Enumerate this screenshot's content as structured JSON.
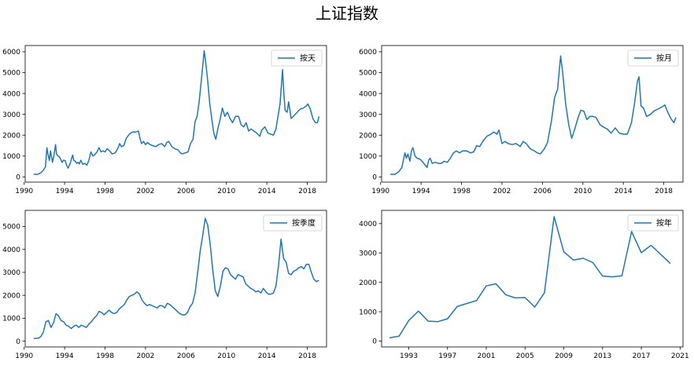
{
  "figure_title": "上证指数",
  "series_color": "#1f77b4",
  "chart_data": [
    {
      "type": "line",
      "legend": "按天",
      "legend_position": "top-right",
      "grid": false,
      "xlim": [
        1990.1,
        2019.9
      ],
      "ylim": [
        -250,
        6300
      ],
      "xticks": [
        1990,
        1994,
        1998,
        2002,
        2006,
        2010,
        2014,
        2018
      ],
      "yticks": [
        0,
        1000,
        2000,
        3000,
        4000,
        5000,
        6000
      ],
      "x": [
        1990.95,
        1991.3,
        1991.6,
        1991.9,
        1992.1,
        1992.25,
        1992.35,
        1992.5,
        1992.6,
        1992.8,
        1992.95,
        1993.1,
        1993.2,
        1993.35,
        1993.5,
        1993.6,
        1993.75,
        1993.9,
        1994.05,
        1994.2,
        1994.35,
        1994.55,
        1994.7,
        1994.8,
        1994.9,
        1995.05,
        1995.2,
        1995.35,
        1995.45,
        1995.6,
        1995.8,
        1996.0,
        1996.2,
        1996.4,
        1996.6,
        1996.8,
        1996.95,
        1997.2,
        1997.4,
        1997.6,
        1997.8,
        1998.0,
        1998.2,
        1998.45,
        1998.7,
        1999.0,
        1999.25,
        1999.45,
        1999.6,
        1999.85,
        2000.1,
        2000.4,
        2000.7,
        2001.0,
        2001.3,
        2001.45,
        2001.6,
        2001.8,
        2002.0,
        2002.2,
        2002.45,
        2002.7,
        2003.0,
        2003.3,
        2003.6,
        2003.9,
        2004.1,
        2004.3,
        2004.6,
        2004.9,
        2005.2,
        2005.45,
        2005.65,
        2005.9,
        2006.2,
        2006.45,
        2006.7,
        2006.9,
        2007.1,
        2007.3,
        2007.55,
        2007.8,
        2007.95,
        2008.15,
        2008.35,
        2008.55,
        2008.75,
        2008.95,
        2009.15,
        2009.35,
        2009.6,
        2009.85,
        2010.1,
        2010.35,
        2010.6,
        2010.9,
        2011.2,
        2011.45,
        2011.7,
        2011.95,
        2012.2,
        2012.45,
        2012.7,
        2013.0,
        2013.3,
        2013.5,
        2013.8,
        2014.1,
        2014.4,
        2014.65,
        2014.9,
        2015.1,
        2015.3,
        2015.45,
        2015.55,
        2015.65,
        2015.8,
        2016.0,
        2016.15,
        2016.4,
        2016.7,
        2017.0,
        2017.3,
        2017.6,
        2017.9,
        2018.05,
        2018.3,
        2018.55,
        2018.8,
        2019.0,
        2019.15
      ],
      "y": [
        130,
        120,
        180,
        320,
        480,
        1400,
        1100,
        780,
        1250,
        700,
        1050,
        1550,
        1100,
        1000,
        950,
        850,
        700,
        800,
        780,
        550,
        420,
        650,
        900,
        1050,
        800,
        750,
        650,
        700,
        620,
        800,
        600,
        650,
        560,
        800,
        1200,
        1000,
        1050,
        1200,
        1400,
        1200,
        1250,
        1200,
        1350,
        1250,
        1100,
        1150,
        1350,
        1600,
        1450,
        1500,
        1850,
        2050,
        2150,
        2150,
        2200,
        1850,
        1600,
        1700,
        1550,
        1650,
        1550,
        1500,
        1450,
        1550,
        1600,
        1450,
        1650,
        1700,
        1450,
        1350,
        1300,
        1150,
        1100,
        1150,
        1200,
        1600,
        1800,
        2650,
        2900,
        3600,
        4800,
        6050,
        5500,
        4600,
        3500,
        2800,
        2100,
        1800,
        2300,
        2700,
        3300,
        2900,
        3100,
        2800,
        2600,
        2900,
        2900,
        2500,
        2400,
        2600,
        2200,
        2300,
        2200,
        2100,
        1950,
        2250,
        2400,
        2100,
        2050,
        2000,
        2300,
        2900,
        3500,
        4500,
        5150,
        4200,
        3200,
        3100,
        3600,
        2800,
        2950,
        3100,
        3250,
        3300,
        3400,
        3500,
        3250,
        2800,
        2600,
        2600,
        2900
      ]
    },
    {
      "type": "line",
      "legend": "按月",
      "legend_position": "top-right",
      "grid": false,
      "xlim": [
        1990.1,
        2019.9
      ],
      "ylim": [
        -250,
        6300
      ],
      "xticks": [
        1990,
        1994,
        1998,
        2002,
        2006,
        2010,
        2014,
        2018
      ],
      "yticks": [
        0,
        1000,
        2000,
        3000,
        4000,
        5000,
        6000
      ],
      "x": [
        1990.95,
        1991.4,
        1991.8,
        1992.1,
        1992.4,
        1992.55,
        1992.7,
        1992.9,
        1993.05,
        1993.2,
        1993.4,
        1993.6,
        1993.9,
        1994.1,
        1994.35,
        1994.6,
        1994.75,
        1994.9,
        1995.1,
        1995.4,
        1995.7,
        1996.0,
        1996.3,
        1996.6,
        1996.9,
        1997.2,
        1997.5,
        1997.8,
        1998.1,
        1998.5,
        1998.9,
        1999.2,
        1999.5,
        1999.8,
        2000.1,
        2000.5,
        2000.9,
        2001.2,
        2001.5,
        2001.7,
        2002.0,
        2002.3,
        2002.6,
        2003.0,
        2003.4,
        2003.8,
        2004.1,
        2004.4,
        2004.8,
        2005.2,
        2005.5,
        2005.8,
        2006.2,
        2006.5,
        2006.9,
        2007.2,
        2007.5,
        2007.8,
        2008.0,
        2008.3,
        2008.6,
        2008.9,
        2009.2,
        2009.5,
        2009.8,
        2010.1,
        2010.4,
        2010.7,
        2011.0,
        2011.3,
        2011.7,
        2012.0,
        2012.4,
        2012.8,
        2013.2,
        2013.6,
        2014.0,
        2014.4,
        2014.8,
        2015.1,
        2015.4,
        2015.55,
        2015.75,
        2016.0,
        2016.3,
        2016.7,
        2017.0,
        2017.4,
        2017.8,
        2018.1,
        2018.4,
        2018.7,
        2019.0,
        2019.2
      ],
      "y": [
        130,
        120,
        250,
        450,
        1150,
        900,
        1100,
        750,
        1250,
        1400,
        1000,
        900,
        850,
        750,
        600,
        450,
        800,
        900,
        650,
        700,
        650,
        650,
        750,
        700,
        900,
        1150,
        1250,
        1150,
        1250,
        1250,
        1150,
        1200,
        1500,
        1450,
        1700,
        1950,
        2050,
        2150,
        2050,
        2250,
        1600,
        1700,
        1600,
        1550,
        1600,
        1450,
        1700,
        1600,
        1350,
        1250,
        1150,
        1100,
        1350,
        1650,
        2700,
        3800,
        4200,
        5800,
        5000,
        3500,
        2500,
        1850,
        2300,
        2800,
        3200,
        3150,
        2750,
        2900,
        2900,
        2850,
        2500,
        2400,
        2300,
        2100,
        2350,
        2100,
        2050,
        2050,
        2600,
        3500,
        4600,
        4800,
        3400,
        3300,
        2900,
        3000,
        3150,
        3250,
        3350,
        3450,
        3100,
        2800,
        2600,
        2850
      ]
    },
    {
      "type": "line",
      "legend": "按季度",
      "legend_position": "top-right",
      "grid": false,
      "xlim": [
        1990.1,
        2019.9
      ],
      "ylim": [
        -250,
        5700
      ],
      "xticks": [
        1990,
        1994,
        1998,
        2002,
        2006,
        2010,
        2014,
        2018
      ],
      "yticks": [
        0,
        1000,
        2000,
        3000,
        4000,
        5000
      ],
      "x": [
        1990.95,
        1991.4,
        1991.65,
        1991.9,
        1992.15,
        1992.4,
        1992.65,
        1992.9,
        1993.15,
        1993.4,
        1993.65,
        1993.9,
        1994.15,
        1994.4,
        1994.65,
        1994.9,
        1995.15,
        1995.4,
        1995.65,
        1995.9,
        1996.15,
        1996.4,
        1996.65,
        1996.9,
        1997.15,
        1997.4,
        1997.65,
        1997.9,
        1998.15,
        1998.4,
        1998.65,
        1998.9,
        1999.15,
        1999.4,
        1999.65,
        1999.9,
        2000.15,
        2000.4,
        2000.65,
        2000.9,
        2001.15,
        2001.4,
        2001.65,
        2001.9,
        2002.15,
        2002.4,
        2002.65,
        2002.9,
        2003.15,
        2003.4,
        2003.65,
        2003.9,
        2004.15,
        2004.4,
        2004.65,
        2004.9,
        2005.15,
        2005.4,
        2005.65,
        2005.9,
        2006.15,
        2006.4,
        2006.65,
        2006.9,
        2007.15,
        2007.4,
        2007.65,
        2007.9,
        2008.15,
        2008.4,
        2008.65,
        2008.9,
        2009.15,
        2009.4,
        2009.65,
        2009.9,
        2010.15,
        2010.4,
        2010.65,
        2010.9,
        2011.15,
        2011.4,
        2011.65,
        2011.9,
        2012.15,
        2012.4,
        2012.65,
        2012.9,
        2013.15,
        2013.4,
        2013.65,
        2013.9,
        2014.15,
        2014.4,
        2014.65,
        2014.9,
        2015.15,
        2015.4,
        2015.65,
        2015.9,
        2016.15,
        2016.4,
        2016.65,
        2016.9,
        2017.15,
        2017.4,
        2017.65,
        2017.9,
        2018.15,
        2018.4,
        2018.65,
        2018.9,
        2019.15
      ],
      "y": [
        120,
        130,
        200,
        400,
        850,
        900,
        600,
        800,
        1200,
        1100,
        900,
        850,
        700,
        650,
        550,
        650,
        700,
        600,
        700,
        650,
        600,
        750,
        850,
        1000,
        1100,
        1300,
        1250,
        1150,
        1250,
        1350,
        1250,
        1200,
        1250,
        1400,
        1500,
        1600,
        1800,
        1950,
        2000,
        2050,
        2150,
        2050,
        1800,
        1650,
        1550,
        1600,
        1550,
        1500,
        1450,
        1550,
        1550,
        1450,
        1650,
        1600,
        1500,
        1400,
        1300,
        1200,
        1150,
        1150,
        1250,
        1500,
        1650,
        2100,
        2950,
        3900,
        4600,
        5350,
        5050,
        4200,
        3100,
        2200,
        1950,
        2400,
        3050,
        3200,
        3150,
        2900,
        2800,
        2700,
        2900,
        2850,
        2800,
        2500,
        2400,
        2300,
        2250,
        2150,
        2200,
        2100,
        2300,
        2150,
        2050,
        2050,
        2100,
        2400,
        3300,
        4450,
        3600,
        3450,
        2950,
        2900,
        3050,
        3100,
        3200,
        3250,
        3150,
        3350,
        3350,
        3000,
        2700,
        2600,
        2650
      ]
    },
    {
      "type": "line",
      "legend": "按年",
      "legend_position": "top-right",
      "grid": false,
      "xlim": [
        1990.2,
        2021.3
      ],
      "ylim": [
        -200,
        4450
      ],
      "xticks": [
        1993,
        1997,
        2001,
        2005,
        2009,
        2013,
        2017,
        2021
      ],
      "yticks": [
        0,
        1000,
        2000,
        3000,
        4000
      ],
      "x": [
        1991,
        1992,
        1993,
        1994,
        1995,
        1996,
        1997,
        1998,
        1999,
        2000,
        2001,
        2002,
        2003,
        2004,
        2005,
        2006,
        2007,
        2008,
        2009,
        2010,
        2011,
        2012,
        2013,
        2014,
        2015,
        2016,
        2017,
        2018,
        2019,
        2020
      ],
      "y": [
        110,
        170,
        700,
        1020,
        680,
        660,
        760,
        1180,
        1280,
        1380,
        1880,
        1950,
        1580,
        1470,
        1480,
        1160,
        1640,
        4240,
        3040,
        2760,
        2820,
        2670,
        2210,
        2190,
        2220,
        3730,
        3010,
        3260,
        2950,
        2640
      ]
    }
  ]
}
